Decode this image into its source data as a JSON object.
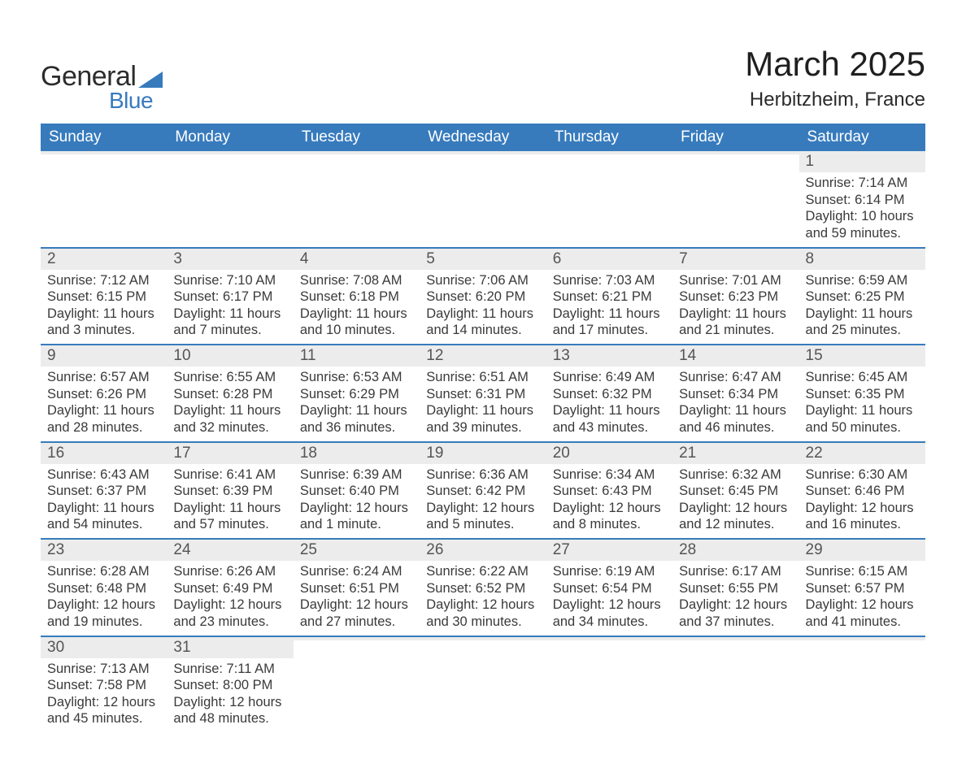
{
  "brand": {
    "word1": "General",
    "word2": "Blue",
    "triangle_color": "#377bbd"
  },
  "title": {
    "month": "March 2025",
    "location": "Herbitzheim, France"
  },
  "colors": {
    "header_blue": "#377bbd",
    "row_border": "#377bbd",
    "daynum_bg": "#ececec",
    "background": "#ffffff",
    "text": "#3a3a3a"
  },
  "typography": {
    "month_fontsize_pt": 32,
    "location_fontsize_pt": 18,
    "weekday_fontsize_pt": 14,
    "body_fontsize_pt": 12,
    "font_family": "Arial"
  },
  "weekdays": [
    "Sunday",
    "Monday",
    "Tuesday",
    "Wednesday",
    "Thursday",
    "Friday",
    "Saturday"
  ],
  "labels": {
    "sunrise": "Sunrise: ",
    "sunset": "Sunset: ",
    "daylight": "Daylight: "
  },
  "weeks": [
    [
      null,
      null,
      null,
      null,
      null,
      null,
      {
        "n": "1",
        "sunrise": "7:14 AM",
        "sunset": "6:14 PM",
        "daylight": "10 hours and 59 minutes."
      }
    ],
    [
      {
        "n": "2",
        "sunrise": "7:12 AM",
        "sunset": "6:15 PM",
        "daylight": "11 hours and 3 minutes."
      },
      {
        "n": "3",
        "sunrise": "7:10 AM",
        "sunset": "6:17 PM",
        "daylight": "11 hours and 7 minutes."
      },
      {
        "n": "4",
        "sunrise": "7:08 AM",
        "sunset": "6:18 PM",
        "daylight": "11 hours and 10 minutes."
      },
      {
        "n": "5",
        "sunrise": "7:06 AM",
        "sunset": "6:20 PM",
        "daylight": "11 hours and 14 minutes."
      },
      {
        "n": "6",
        "sunrise": "7:03 AM",
        "sunset": "6:21 PM",
        "daylight": "11 hours and 17 minutes."
      },
      {
        "n": "7",
        "sunrise": "7:01 AM",
        "sunset": "6:23 PM",
        "daylight": "11 hours and 21 minutes."
      },
      {
        "n": "8",
        "sunrise": "6:59 AM",
        "sunset": "6:25 PM",
        "daylight": "11 hours and 25 minutes."
      }
    ],
    [
      {
        "n": "9",
        "sunrise": "6:57 AM",
        "sunset": "6:26 PM",
        "daylight": "11 hours and 28 minutes."
      },
      {
        "n": "10",
        "sunrise": "6:55 AM",
        "sunset": "6:28 PM",
        "daylight": "11 hours and 32 minutes."
      },
      {
        "n": "11",
        "sunrise": "6:53 AM",
        "sunset": "6:29 PM",
        "daylight": "11 hours and 36 minutes."
      },
      {
        "n": "12",
        "sunrise": "6:51 AM",
        "sunset": "6:31 PM",
        "daylight": "11 hours and 39 minutes."
      },
      {
        "n": "13",
        "sunrise": "6:49 AM",
        "sunset": "6:32 PM",
        "daylight": "11 hours and 43 minutes."
      },
      {
        "n": "14",
        "sunrise": "6:47 AM",
        "sunset": "6:34 PM",
        "daylight": "11 hours and 46 minutes."
      },
      {
        "n": "15",
        "sunrise": "6:45 AM",
        "sunset": "6:35 PM",
        "daylight": "11 hours and 50 minutes."
      }
    ],
    [
      {
        "n": "16",
        "sunrise": "6:43 AM",
        "sunset": "6:37 PM",
        "daylight": "11 hours and 54 minutes."
      },
      {
        "n": "17",
        "sunrise": "6:41 AM",
        "sunset": "6:39 PM",
        "daylight": "11 hours and 57 minutes."
      },
      {
        "n": "18",
        "sunrise": "6:39 AM",
        "sunset": "6:40 PM",
        "daylight": "12 hours and 1 minute."
      },
      {
        "n": "19",
        "sunrise": "6:36 AM",
        "sunset": "6:42 PM",
        "daylight": "12 hours and 5 minutes."
      },
      {
        "n": "20",
        "sunrise": "6:34 AM",
        "sunset": "6:43 PM",
        "daylight": "12 hours and 8 minutes."
      },
      {
        "n": "21",
        "sunrise": "6:32 AM",
        "sunset": "6:45 PM",
        "daylight": "12 hours and 12 minutes."
      },
      {
        "n": "22",
        "sunrise": "6:30 AM",
        "sunset": "6:46 PM",
        "daylight": "12 hours and 16 minutes."
      }
    ],
    [
      {
        "n": "23",
        "sunrise": "6:28 AM",
        "sunset": "6:48 PM",
        "daylight": "12 hours and 19 minutes."
      },
      {
        "n": "24",
        "sunrise": "6:26 AM",
        "sunset": "6:49 PM",
        "daylight": "12 hours and 23 minutes."
      },
      {
        "n": "25",
        "sunrise": "6:24 AM",
        "sunset": "6:51 PM",
        "daylight": "12 hours and 27 minutes."
      },
      {
        "n": "26",
        "sunrise": "6:22 AM",
        "sunset": "6:52 PM",
        "daylight": "12 hours and 30 minutes."
      },
      {
        "n": "27",
        "sunrise": "6:19 AM",
        "sunset": "6:54 PM",
        "daylight": "12 hours and 34 minutes."
      },
      {
        "n": "28",
        "sunrise": "6:17 AM",
        "sunset": "6:55 PM",
        "daylight": "12 hours and 37 minutes."
      },
      {
        "n": "29",
        "sunrise": "6:15 AM",
        "sunset": "6:57 PM",
        "daylight": "12 hours and 41 minutes."
      }
    ],
    [
      {
        "n": "30",
        "sunrise": "7:13 AM",
        "sunset": "7:58 PM",
        "daylight": "12 hours and 45 minutes."
      },
      {
        "n": "31",
        "sunrise": "7:11 AM",
        "sunset": "8:00 PM",
        "daylight": "12 hours and 48 minutes."
      },
      null,
      null,
      null,
      null,
      null
    ]
  ]
}
